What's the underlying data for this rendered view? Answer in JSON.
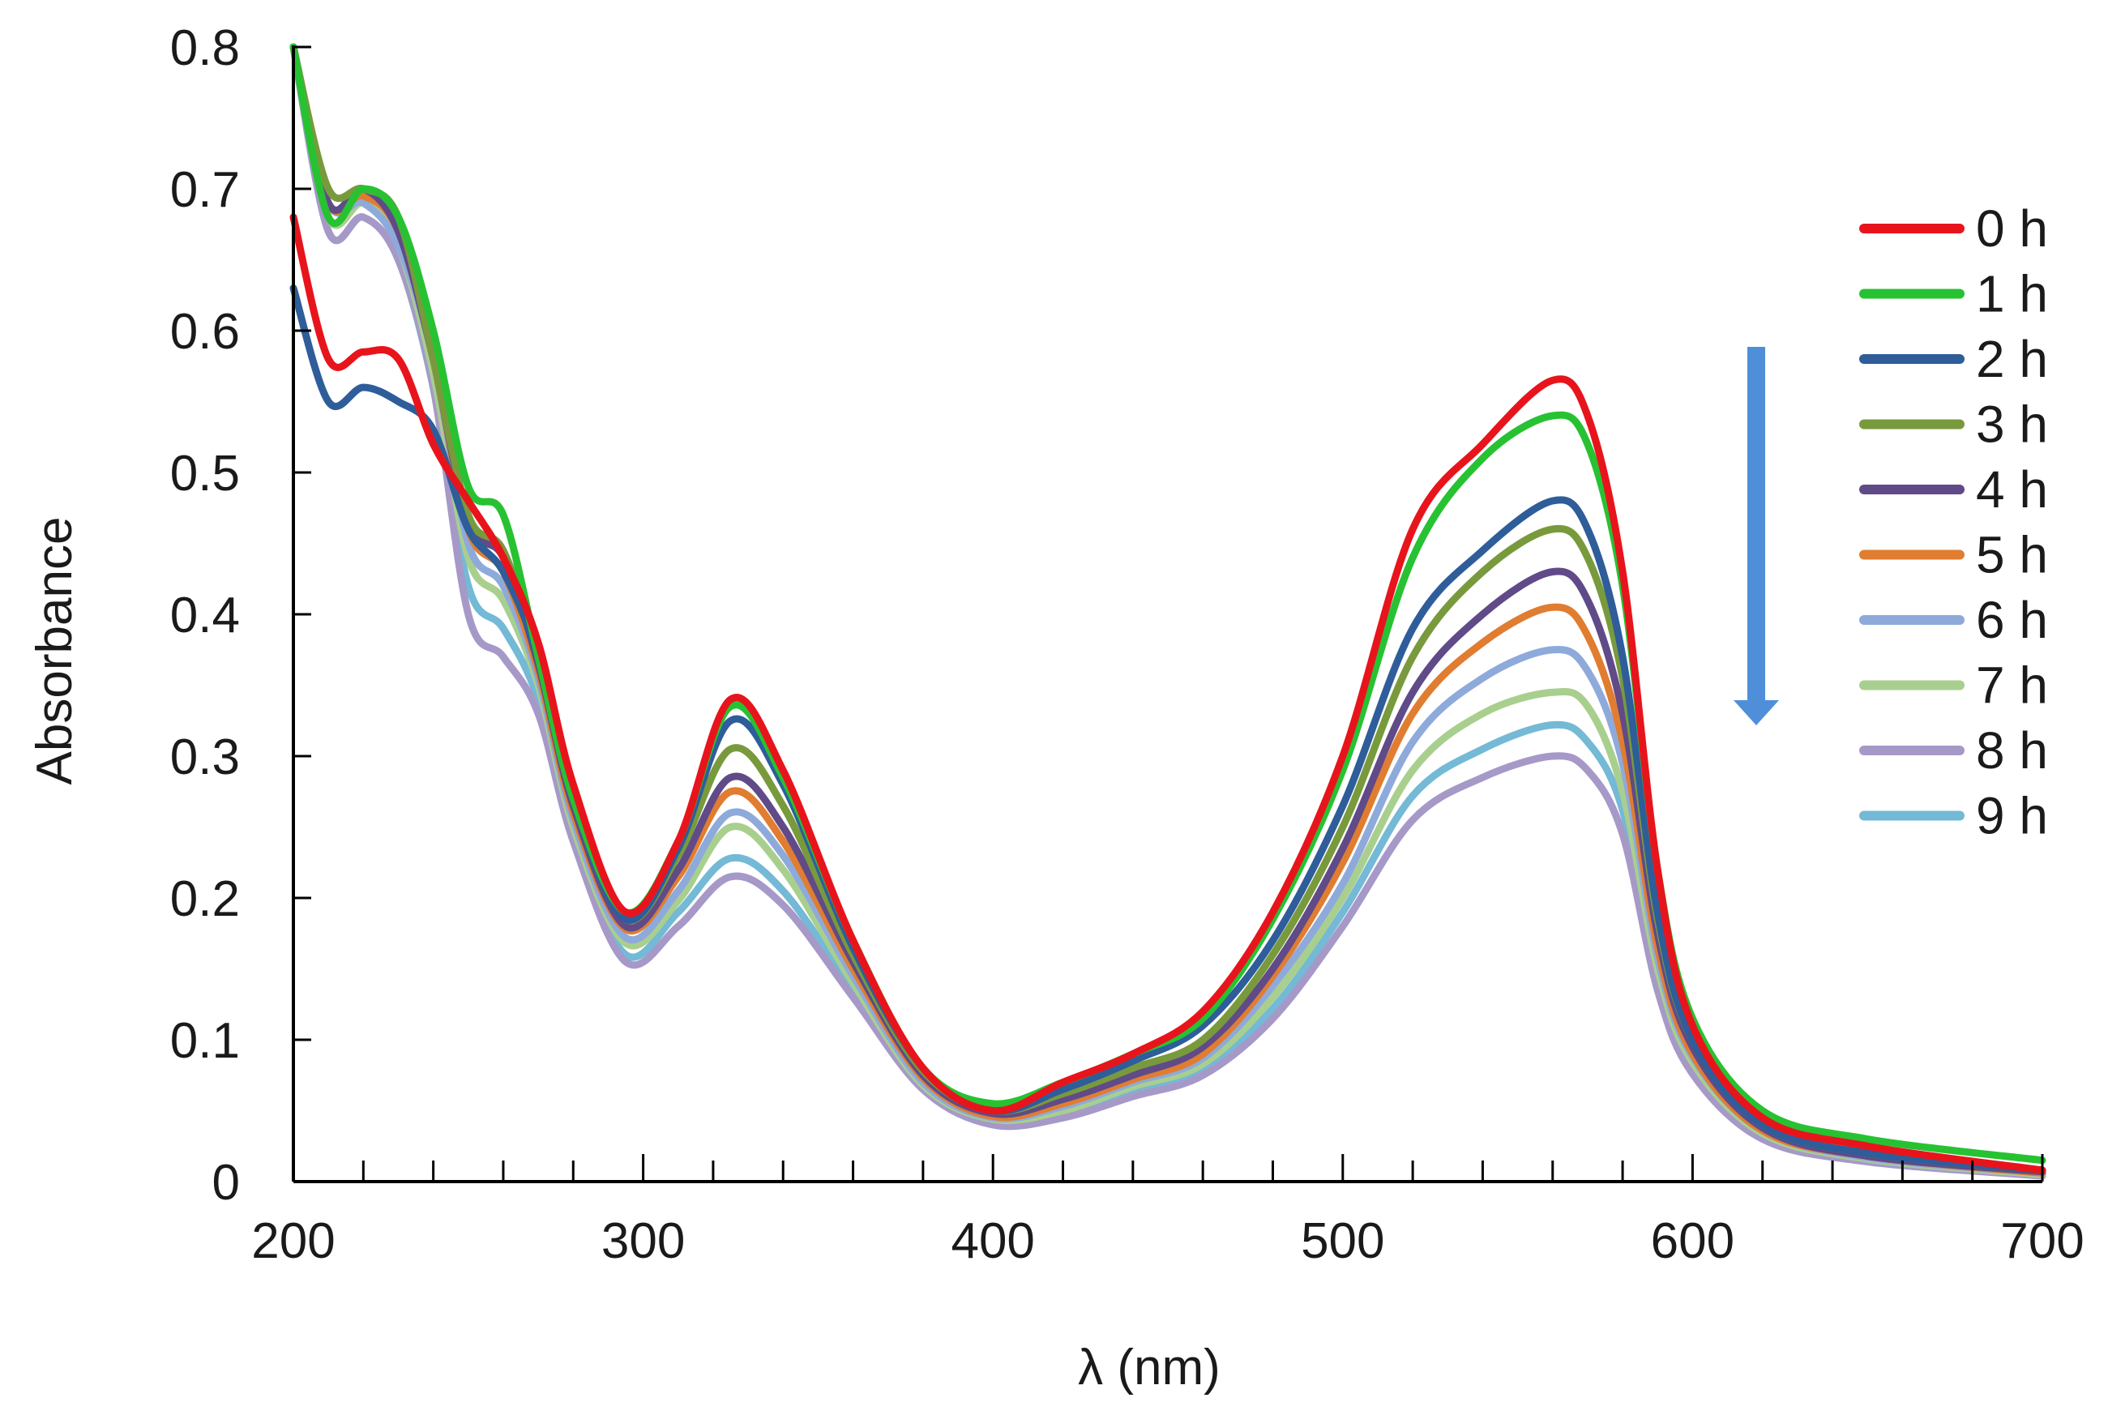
{
  "chart_data": {
    "type": "line",
    "title": "",
    "xlabel": "λ (nm)",
    "ylabel": "Absorbance",
    "xlim": [
      200,
      700
    ],
    "ylim": [
      0,
      0.8
    ],
    "x_ticks": [
      200,
      300,
      400,
      500,
      600,
      700
    ],
    "x_tick_labels": [
      "200",
      "300",
      "400",
      "500",
      "600",
      "700"
    ],
    "y_ticks": [
      0,
      0.1,
      0.2,
      0.3,
      0.4,
      0.5,
      0.6,
      0.7,
      0.8
    ],
    "y_tick_labels": [
      "0",
      "0.1",
      "0.2",
      "0.3",
      "0.4",
      "0.5",
      "0.6",
      "0.7",
      "0.8"
    ],
    "x_minor_tick_step": 20,
    "grid": false,
    "legend_position": "right",
    "annotation": "downward arrow indicating decreasing absorbance over time",
    "x": [
      200,
      210,
      220,
      230,
      240,
      250,
      260,
      270,
      280,
      295,
      310,
      325,
      340,
      360,
      380,
      400,
      420,
      440,
      460,
      480,
      500,
      520,
      540,
      560,
      570,
      580,
      590,
      600,
      620,
      650,
      700
    ],
    "series": [
      {
        "name": "0 h",
        "color": "#e8141c",
        "values": [
          0.68,
          0.58,
          0.585,
          0.58,
          0.52,
          0.48,
          0.44,
          0.38,
          0.28,
          0.19,
          0.24,
          0.34,
          0.29,
          0.17,
          0.08,
          0.05,
          0.07,
          0.09,
          0.12,
          0.19,
          0.3,
          0.46,
          0.52,
          0.565,
          0.54,
          0.43,
          0.22,
          0.11,
          0.045,
          0.025,
          0.008
        ]
      },
      {
        "name": "1 h",
        "color": "#27c232",
        "values": [
          0.8,
          0.68,
          0.7,
          0.68,
          0.6,
          0.49,
          0.47,
          0.37,
          0.27,
          0.19,
          0.24,
          0.335,
          0.285,
          0.17,
          0.08,
          0.055,
          0.07,
          0.09,
          0.115,
          0.185,
          0.29,
          0.44,
          0.51,
          0.54,
          0.52,
          0.42,
          0.22,
          0.115,
          0.05,
          0.03,
          0.015
        ]
      },
      {
        "name": "2 h",
        "color": "#2e5d9a",
        "values": [
          0.63,
          0.55,
          0.56,
          0.55,
          0.53,
          0.46,
          0.43,
          0.37,
          0.27,
          0.185,
          0.235,
          0.325,
          0.28,
          0.165,
          0.08,
          0.05,
          0.065,
          0.085,
          0.11,
          0.17,
          0.265,
          0.39,
          0.445,
          0.48,
          0.46,
          0.37,
          0.19,
          0.1,
          0.04,
          0.02,
          0.008
        ]
      },
      {
        "name": "3 h",
        "color": "#789a3d",
        "values": [
          0.8,
          0.7,
          0.7,
          0.68,
          0.58,
          0.47,
          0.445,
          0.37,
          0.27,
          0.185,
          0.23,
          0.305,
          0.265,
          0.16,
          0.078,
          0.05,
          0.062,
          0.08,
          0.1,
          0.16,
          0.25,
          0.37,
          0.43,
          0.46,
          0.44,
          0.355,
          0.185,
          0.1,
          0.04,
          0.02,
          0.008
        ]
      },
      {
        "name": "4 h",
        "color": "#604a88",
        "values": [
          0.8,
          0.69,
          0.7,
          0.67,
          0.58,
          0.465,
          0.44,
          0.365,
          0.265,
          0.18,
          0.22,
          0.285,
          0.25,
          0.155,
          0.075,
          0.048,
          0.058,
          0.075,
          0.095,
          0.15,
          0.235,
          0.345,
          0.4,
          0.43,
          0.41,
          0.33,
          0.175,
          0.095,
          0.038,
          0.018,
          0.007
        ]
      },
      {
        "name": "5 h",
        "color": "#e07d31",
        "values": [
          0.8,
          0.69,
          0.695,
          0.67,
          0.58,
          0.46,
          0.43,
          0.36,
          0.26,
          0.178,
          0.215,
          0.275,
          0.24,
          0.15,
          0.073,
          0.046,
          0.055,
          0.072,
          0.09,
          0.145,
          0.225,
          0.33,
          0.38,
          0.405,
          0.385,
          0.31,
          0.165,
          0.09,
          0.036,
          0.018,
          0.006
        ]
      },
      {
        "name": "6 h",
        "color": "#8eaadb",
        "values": [
          0.8,
          0.69,
          0.69,
          0.66,
          0.58,
          0.45,
          0.42,
          0.355,
          0.255,
          0.172,
          0.205,
          0.26,
          0.23,
          0.145,
          0.07,
          0.045,
          0.053,
          0.07,
          0.087,
          0.138,
          0.21,
          0.31,
          0.355,
          0.375,
          0.36,
          0.295,
          0.158,
          0.088,
          0.036,
          0.017,
          0.006
        ]
      },
      {
        "name": "7 h",
        "color": "#a9cf8e",
        "values": [
          0.8,
          0.68,
          0.69,
          0.66,
          0.57,
          0.44,
          0.41,
          0.35,
          0.25,
          0.168,
          0.198,
          0.25,
          0.22,
          0.14,
          0.068,
          0.044,
          0.05,
          0.067,
          0.083,
          0.13,
          0.2,
          0.29,
          0.33,
          0.345,
          0.335,
          0.275,
          0.15,
          0.084,
          0.034,
          0.016,
          0.005
        ]
      },
      {
        "name": "8 h",
        "color": "#a699c8",
        "values": [
          0.8,
          0.67,
          0.68,
          0.65,
          0.56,
          0.4,
          0.37,
          0.33,
          0.24,
          0.155,
          0.18,
          0.215,
          0.195,
          0.13,
          0.065,
          0.04,
          0.045,
          0.06,
          0.075,
          0.115,
          0.18,
          0.255,
          0.285,
          0.3,
          0.29,
          0.245,
          0.135,
          0.076,
          0.03,
          0.014,
          0.004
        ]
      },
      {
        "name": "9 h",
        "color": "#74b9d6",
        "values": [
          0.8,
          0.67,
          0.68,
          0.65,
          0.56,
          0.42,
          0.39,
          0.34,
          0.245,
          0.16,
          0.19,
          0.228,
          0.205,
          0.135,
          0.067,
          0.042,
          0.048,
          0.064,
          0.08,
          0.122,
          0.19,
          0.272,
          0.305,
          0.322,
          0.31,
          0.262,
          0.142,
          0.08,
          0.032,
          0.015,
          0.005
        ]
      }
    ]
  },
  "colors": {
    "axis": "#000000",
    "arrow": "#4f8fd9"
  }
}
